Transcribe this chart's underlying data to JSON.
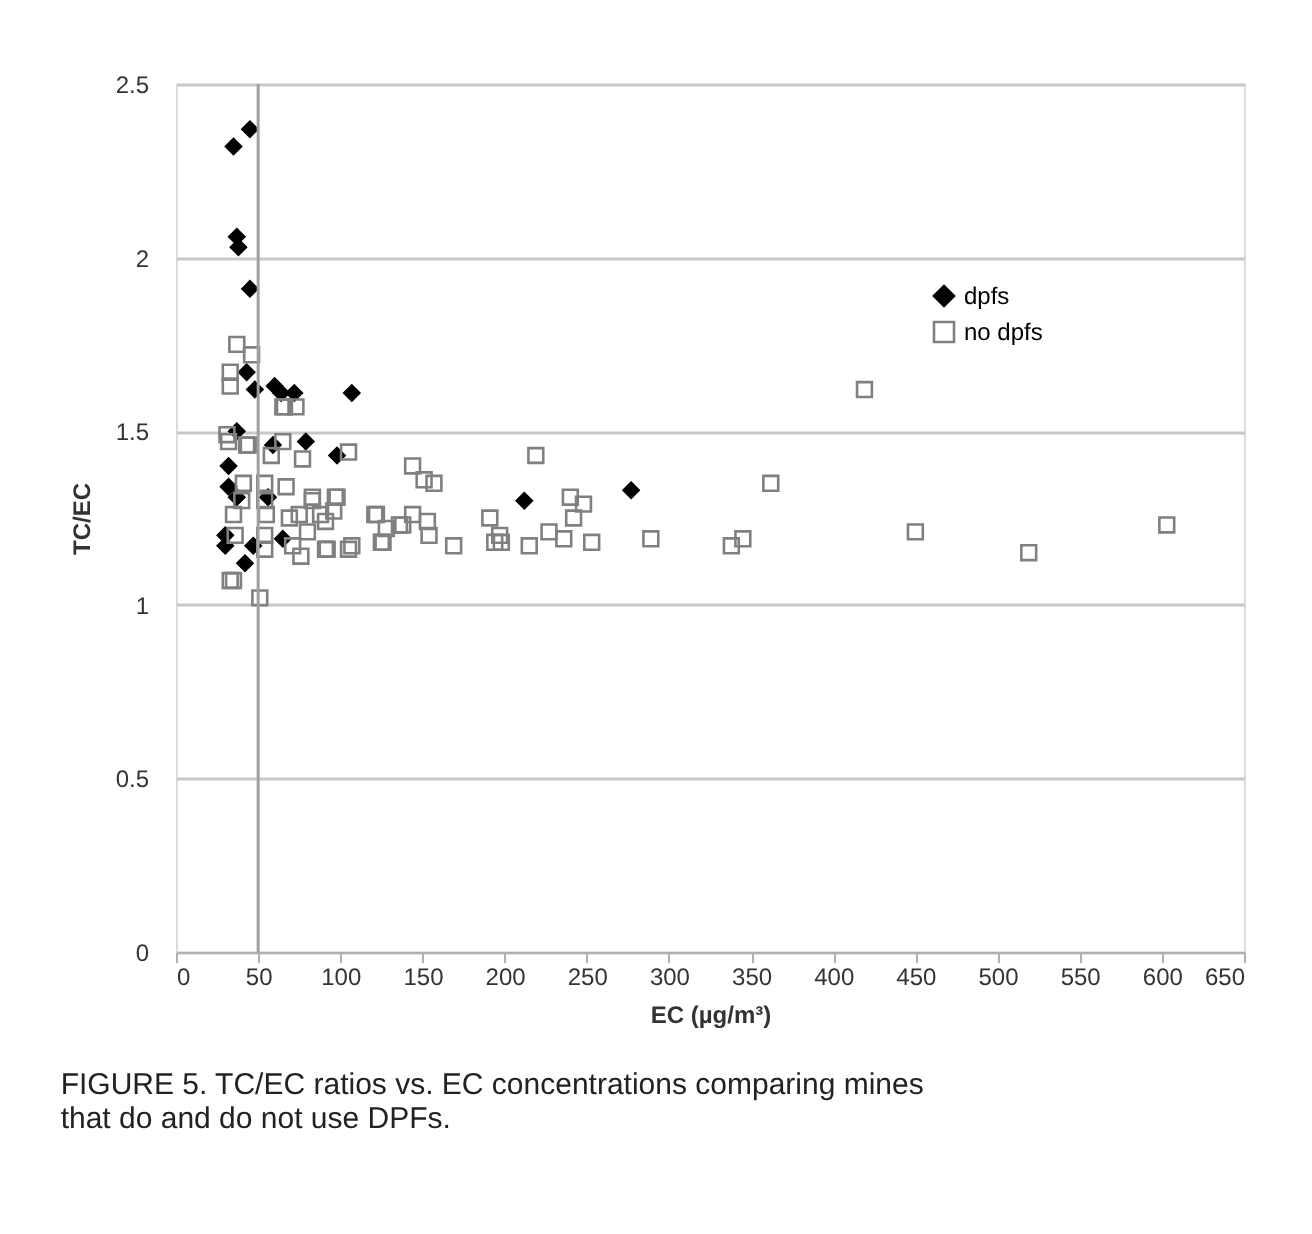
{
  "chart_data": {
    "type": "scatter",
    "xlabel": "EC (µg/m³)",
    "ylabel": "TC/EC",
    "xlim": [
      0,
      650
    ],
    "xticks": [
      0,
      50,
      100,
      150,
      200,
      250,
      300,
      350,
      400,
      450,
      500,
      550,
      600,
      650
    ],
    "ylim": [
      0,
      2.5
    ],
    "yticks": [
      0,
      0.5,
      1,
      1.5,
      2,
      2.5
    ],
    "grid": "y",
    "legend": "top right",
    "ref_lines": [
      {
        "axis": "x",
        "value": 50,
        "color": "#a0a0a0"
      }
    ],
    "annotations": [
      "FIGURE 5.  TC/EC ratios vs. EC concentrations comparing mines that do and do not use DPFs."
    ],
    "series": [
      {
        "name": "dpfs",
        "color": "#000000",
        "marker": "diamond",
        "x": [
          35,
          45,
          37,
          38,
          45,
          43,
          48,
          60,
          64,
          72,
          107,
          37,
          79,
          59,
          98,
          32,
          32,
          37,
          56,
          30,
          30,
          47,
          42,
          65,
          212,
          277
        ],
        "values": [
          2.32,
          2.37,
          2.06,
          2.03,
          1.91,
          1.67,
          1.62,
          1.63,
          1.61,
          1.61,
          1.61,
          1.5,
          1.47,
          1.46,
          1.43,
          1.4,
          1.34,
          1.31,
          1.31,
          1.2,
          1.17,
          1.17,
          1.12,
          1.19,
          1.3,
          1.33
        ]
      },
      {
        "name": "no dpfs",
        "color": "#808080",
        "marker": "square",
        "x": [
          37,
          46,
          33,
          33,
          65,
          73,
          31,
          32,
          44,
          65,
          58,
          77,
          105,
          41,
          54,
          67,
          40,
          54,
          83,
          98,
          35,
          55,
          69,
          88,
          75,
          36,
          54,
          80,
          91,
          54,
          71,
          76,
          92,
          107,
          122,
          128,
          126,
          138,
          144,
          153,
          154,
          144,
          151,
          157,
          33,
          35,
          51,
          419,
          219,
          191,
          194,
          198,
          197,
          215,
          227,
          236,
          240,
          248,
          242,
          253,
          289,
          338,
          345,
          362,
          450,
          519,
          603,
          169,
          121,
          125,
          136,
          97,
          96,
          91,
          105,
          83,
          66,
          43
        ],
        "values": [
          1.75,
          1.72,
          1.67,
          1.63,
          1.57,
          1.57,
          1.49,
          1.47,
          1.46,
          1.47,
          1.43,
          1.42,
          1.44,
          1.35,
          1.35,
          1.34,
          1.3,
          1.3,
          1.3,
          1.31,
          1.26,
          1.26,
          1.25,
          1.26,
          1.26,
          1.2,
          1.2,
          1.21,
          1.24,
          1.16,
          1.17,
          1.14,
          1.16,
          1.17,
          1.26,
          1.22,
          1.18,
          1.23,
          1.26,
          1.24,
          1.2,
          1.4,
          1.36,
          1.35,
          1.07,
          1.07,
          1.02,
          1.62,
          1.43,
          1.25,
          1.18,
          1.18,
          1.2,
          1.17,
          1.21,
          1.19,
          1.31,
          1.29,
          1.25,
          1.18,
          1.19,
          1.17,
          1.19,
          1.35,
          1.21,
          1.15,
          1.23,
          1.17,
          1.26,
          1.18,
          1.23,
          1.31,
          1.27,
          1.16,
          1.16,
          1.31,
          1.57,
          1.46
        ]
      }
    ]
  }
}
